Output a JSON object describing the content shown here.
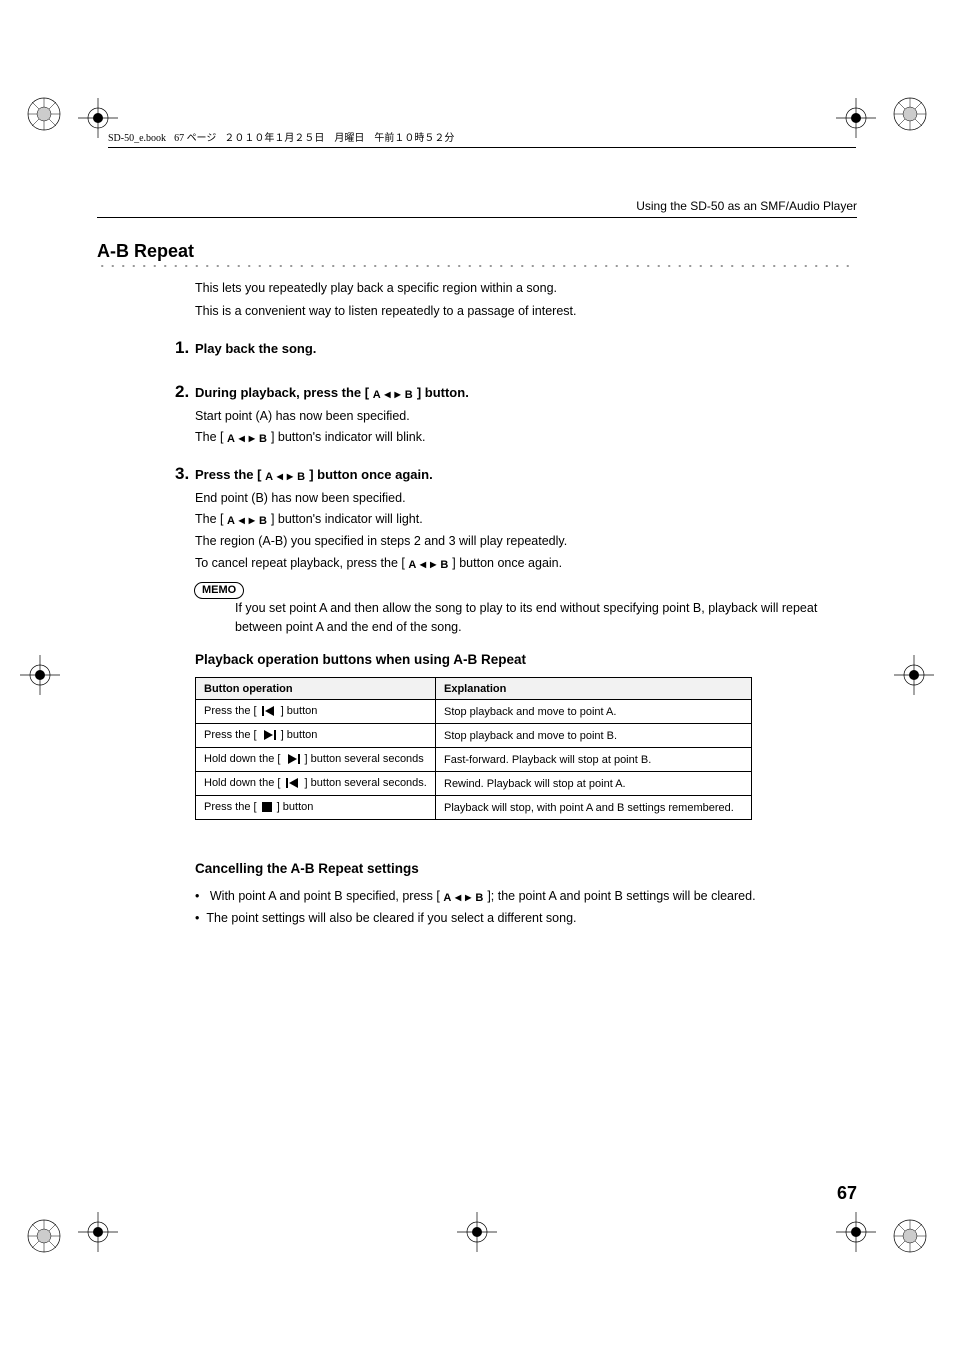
{
  "header": {
    "filename": "SD-50_e.book",
    "page_jp": "67 ページ",
    "date_jp": "２０１０年１月２５日　月曜日　午前１０時５２分"
  },
  "running_head": "Using the SD-50 as an SMF/Audio Player",
  "section_title": "A-B Repeat",
  "intro": {
    "line1": "This lets you repeatedly play back a specific region within a song.",
    "line2": "This is a convenient way to listen repeatedly to a passage of interest."
  },
  "ab_glyph": {
    "a": "A",
    "b": "B",
    "tri_l": "◀",
    "tri_r": "▶"
  },
  "steps": {
    "s1": {
      "num": "1.",
      "head": "Play back the song."
    },
    "s2": {
      "num": "2.",
      "head_pre": "During playback, press the [ ",
      "head_post": " ] button.",
      "l1": "Start point (A) has now been specified.",
      "l2_pre": "The [ ",
      "l2_post": " ] button's indicator will blink."
    },
    "s3": {
      "num": "3.",
      "head_pre": "Press the [ ",
      "head_post": " ] button once again.",
      "l1": "End point (B) has now been specified.",
      "l2_pre": "The [ ",
      "l2_post": " ] button's indicator will light.",
      "l3": "The region (A-B) you specified in steps 2 and 3 will play repeatedly.",
      "l4_pre": "To cancel repeat playback, press the [ ",
      "l4_post": " ] button once again."
    }
  },
  "memo": {
    "label": "MEMO",
    "text": "If you set point A and then allow the song to play to its end without specifying point B, playback will repeat between point A and the end of the song."
  },
  "table_section": {
    "heading": "Playback operation buttons when using A-B Repeat",
    "columns": [
      "Button operation",
      "Explanation"
    ],
    "rows": [
      {
        "pre": "Press the [ ",
        "icon": "prev",
        "post": " ] button",
        "exp": "Stop playback and move to point A."
      },
      {
        "pre": "Press the [ ",
        "icon": "next",
        "post": " ] button",
        "exp": "Stop playback and move to point B."
      },
      {
        "pre": "Hold down the [ ",
        "icon": "next",
        "post": " ] button several seconds",
        "exp": "Fast-forward. Playback will stop at point B."
      },
      {
        "pre": "Hold down the [ ",
        "icon": "prev",
        "post": " ] button several seconds.",
        "exp": "Rewind. Playback will stop at point A."
      },
      {
        "pre": "Press the [ ",
        "icon": "stop",
        "post": " ] button",
        "exp": "Playback will stop, with point A and B settings remembered."
      }
    ]
  },
  "cancel_section": {
    "heading": "Cancelling the A-B Repeat settings",
    "item1_pre": "With point A and point B specified, press [ ",
    "item1_post": " ]; the point A and point B settings will be cleared.",
    "item2": "The point settings will also be cleared if you select a different song."
  },
  "page_number": "67"
}
